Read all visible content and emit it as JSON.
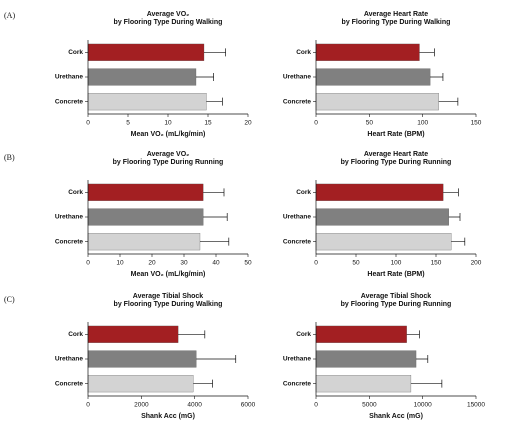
{
  "panel_labels": [
    "(A)",
    "(B)",
    "(C)"
  ],
  "chart_data": [
    {
      "type": "bar",
      "title": "Average VO₂",
      "subtitle": "by Flooring Type During Walking",
      "xlabel": "Mean VO₂ (mL/kg/min)",
      "categories": [
        "Cork",
        "Urethane",
        "Concrete"
      ],
      "values": [
        14.5,
        13.5,
        14.8
      ],
      "errors": [
        2.7,
        2.2,
        2.0
      ],
      "colors": [
        "#a31f22",
        "#808080",
        "#d3d3d3"
      ],
      "xlim": [
        0,
        20
      ],
      "xticks": [
        0,
        5,
        10,
        15,
        20
      ]
    },
    {
      "type": "bar",
      "title": "Average Heart Rate",
      "subtitle": "by Flooring Type During Walking",
      "xlabel": "Heart Rate (BPM)",
      "categories": [
        "Cork",
        "Urethane",
        "Concrete"
      ],
      "values": [
        97,
        107,
        115
      ],
      "errors": [
        14,
        12,
        18
      ],
      "colors": [
        "#a31f22",
        "#808080",
        "#d3d3d3"
      ],
      "xlim": [
        0,
        150
      ],
      "xticks": [
        0,
        50,
        100,
        150
      ]
    },
    {
      "type": "bar",
      "title": "Average VO₂",
      "subtitle": "by Flooring Type During Running",
      "xlabel": "Mean VO₂ (mL/kg/min)",
      "categories": [
        "Cork",
        "Urethane",
        "Concrete"
      ],
      "values": [
        36,
        36,
        35
      ],
      "errors": [
        6.5,
        7.5,
        9
      ],
      "colors": [
        "#a31f22",
        "#808080",
        "#d3d3d3"
      ],
      "xlim": [
        0,
        50
      ],
      "xticks": [
        0,
        10,
        20,
        30,
        40,
        50
      ]
    },
    {
      "type": "bar",
      "title": "Average Heart Rate",
      "subtitle": "by Flooring Type During Running",
      "xlabel": "Heart Rate (BPM)",
      "categories": [
        "Cork",
        "Urethane",
        "Concrete"
      ],
      "values": [
        159,
        166,
        169
      ],
      "errors": [
        19,
        14,
        17
      ],
      "colors": [
        "#a31f22",
        "#808080",
        "#d3d3d3"
      ],
      "xlim": [
        0,
        200
      ],
      "xticks": [
        0,
        50,
        100,
        150,
        200
      ]
    },
    {
      "type": "bar",
      "title": "Average Tibial Shock",
      "subtitle": "by Flooring Type During Walking",
      "xlabel": "Shank Acc (mG)",
      "categories": [
        "Cork",
        "Urethane",
        "Concrete"
      ],
      "values": [
        3380,
        4060,
        3950
      ],
      "errors": [
        1000,
        1480,
        720
      ],
      "colors": [
        "#a31f22",
        "#808080",
        "#d3d3d3"
      ],
      "xlim": [
        0,
        6000
      ],
      "xticks": [
        0,
        2000,
        4000,
        6000
      ]
    },
    {
      "type": "bar",
      "title": "Average Tibial Shock",
      "subtitle": "by Flooring Type During Running",
      "xlabel": "Shank Acc (mG)",
      "categories": [
        "Cork",
        "Urethane",
        "Concrete"
      ],
      "values": [
        8500,
        9380,
        8900
      ],
      "errors": [
        1200,
        1100,
        2900
      ],
      "colors": [
        "#a31f22",
        "#808080",
        "#d3d3d3"
      ],
      "xlim": [
        0,
        15000
      ],
      "xticks": [
        0,
        5000,
        10000,
        15000
      ]
    }
  ]
}
